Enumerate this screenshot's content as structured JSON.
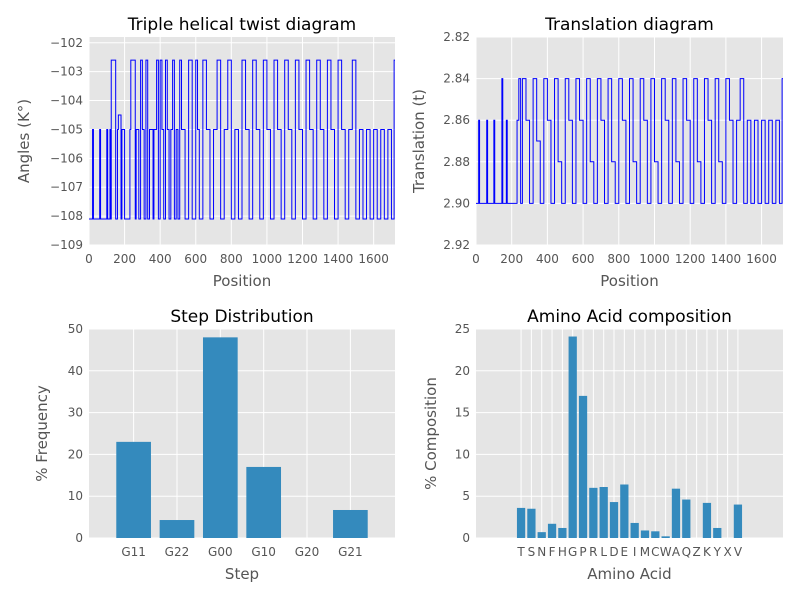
{
  "chart_data": [
    {
      "type": "line",
      "title": "Triple helical twist diagram",
      "xlabel": "Position",
      "ylabel": "Angles (K°)",
      "xlim": [
        0,
        1720
      ],
      "ylim": [
        -109,
        -101.8
      ],
      "xticks": [
        "0",
        "200",
        "400",
        "600",
        "800",
        "1000",
        "1200",
        "1400",
        "1600"
      ],
      "yticks": [
        "−102",
        "−103",
        "−104",
        "−105",
        "−106",
        "−107",
        "−108",
        "−109"
      ],
      "grid": true,
      "color": "#0000ff",
      "note_levels": [
        -102.6,
        -104.5,
        -105.0,
        -106.2,
        -107.3,
        -108.1
      ],
      "series": [
        {
          "x": [
            0,
            20,
            25,
            60,
            65,
            100,
            105,
            118,
            120,
            125,
            150,
            160,
            165,
            180,
            185,
            200,
            230,
            235,
            260,
            265,
            280,
            290,
            300,
            310,
            320,
            330,
            340,
            360,
            365,
            380,
            390,
            400,
            410,
            420,
            430,
            440,
            450,
            460,
            470,
            480,
            490,
            500,
            510,
            520,
            540,
            560,
            580,
            600,
            610,
            620,
            640,
            660,
            680,
            700,
            720,
            740,
            760,
            780,
            800,
            820,
            840,
            860,
            880,
            900,
            920,
            940,
            960,
            980,
            1000,
            1020,
            1040,
            1060,
            1080,
            1100,
            1120,
            1140,
            1160,
            1180,
            1200,
            1220,
            1240,
            1260,
            1280,
            1300,
            1320,
            1340,
            1360,
            1380,
            1400,
            1420,
            1440,
            1460,
            1480,
            1500,
            1520,
            1540,
            1560,
            1580,
            1600,
            1620,
            1640,
            1660,
            1680,
            1700,
            1715
          ],
          "y": [
            -108.1,
            -105.0,
            -108.1,
            -105.0,
            -108.1,
            -105.0,
            -108.1,
            -105.0,
            -108.1,
            -102.6,
            -108.1,
            -105.0,
            -104.5,
            -108.1,
            -105.0,
            -108.1,
            -105.0,
            -102.6,
            -108.1,
            -105.0,
            -108.1,
            -102.6,
            -105.0,
            -108.1,
            -102.6,
            -108.1,
            -105.0,
            -108.1,
            -105.0,
            -102.6,
            -108.1,
            -102.6,
            -105.0,
            -108.1,
            -102.6,
            -105.0,
            -108.1,
            -105.0,
            -102.6,
            -108.1,
            -105.0,
            -108.1,
            -102.6,
            -105.0,
            -108.1,
            -102.6,
            -108.1,
            -102.6,
            -105.0,
            -108.1,
            -102.6,
            -105.0,
            -108.1,
            -105.0,
            -102.6,
            -108.1,
            -105.0,
            -102.6,
            -108.1,
            -105.0,
            -108.1,
            -102.6,
            -105.0,
            -108.1,
            -102.6,
            -105.0,
            -108.1,
            -102.6,
            -105.0,
            -108.1,
            -102.6,
            -105.0,
            -108.1,
            -102.6,
            -105.0,
            -108.1,
            -102.6,
            -105.0,
            -108.1,
            -102.6,
            -105.0,
            -108.1,
            -102.6,
            -105.0,
            -108.1,
            -102.6,
            -105.0,
            -108.1,
            -102.6,
            -105.0,
            -108.1,
            -105.0,
            -102.6,
            -108.1,
            -105.0,
            -108.1,
            -105.0,
            -108.1,
            -105.0,
            -108.1,
            -105.0,
            -108.1,
            -105.0,
            -108.1,
            -102.6
          ]
        }
      ]
    },
    {
      "type": "line",
      "title": "Translation diagram",
      "xlabel": "Position",
      "ylabel": "Translation (t)",
      "xlim": [
        0,
        1720
      ],
      "ylim": [
        2.92,
        2.82
      ],
      "inverted_y": true,
      "xticks": [
        "0",
        "200",
        "400",
        "600",
        "800",
        "1000",
        "1200",
        "1400",
        "1600"
      ],
      "yticks": [
        "2.82",
        "2.84",
        "2.86",
        "2.88",
        "2.90",
        "2.92"
      ],
      "grid": true,
      "color": "#0000ff",
      "series": [
        {
          "x": [
            0,
            15,
            20,
            60,
            65,
            100,
            105,
            140,
            145,
            150,
            170,
            175,
            200,
            230,
            240,
            250,
            260,
            280,
            300,
            320,
            340,
            360,
            380,
            400,
            420,
            440,
            460,
            480,
            500,
            520,
            540,
            560,
            580,
            600,
            620,
            640,
            660,
            680,
            700,
            720,
            740,
            760,
            780,
            800,
            820,
            840,
            860,
            880,
            900,
            920,
            940,
            960,
            980,
            1000,
            1020,
            1040,
            1060,
            1080,
            1100,
            1120,
            1140,
            1160,
            1180,
            1200,
            1220,
            1240,
            1260,
            1280,
            1300,
            1320,
            1340,
            1360,
            1380,
            1400,
            1420,
            1440,
            1460,
            1480,
            1500,
            1520,
            1540,
            1560,
            1580,
            1600,
            1620,
            1640,
            1660,
            1680,
            1700,
            1715
          ],
          "y": [
            2.9,
            2.86,
            2.9,
            2.86,
            2.9,
            2.86,
            2.9,
            2.9,
            2.84,
            2.9,
            2.86,
            2.9,
            2.9,
            2.86,
            2.84,
            2.9,
            2.84,
            2.86,
            2.9,
            2.84,
            2.87,
            2.9,
            2.84,
            2.86,
            2.9,
            2.84,
            2.88,
            2.9,
            2.84,
            2.86,
            2.9,
            2.84,
            2.86,
            2.9,
            2.84,
            2.88,
            2.9,
            2.84,
            2.86,
            2.9,
            2.84,
            2.88,
            2.9,
            2.84,
            2.86,
            2.9,
            2.84,
            2.88,
            2.9,
            2.84,
            2.86,
            2.9,
            2.84,
            2.88,
            2.9,
            2.84,
            2.86,
            2.9,
            2.84,
            2.88,
            2.9,
            2.84,
            2.86,
            2.9,
            2.84,
            2.88,
            2.9,
            2.84,
            2.86,
            2.9,
            2.84,
            2.88,
            2.9,
            2.84,
            2.86,
            2.9,
            2.86,
            2.84,
            2.9,
            2.86,
            2.9,
            2.86,
            2.9,
            2.86,
            2.9,
            2.86,
            2.9,
            2.86,
            2.9,
            2.84
          ]
        }
      ]
    },
    {
      "type": "bar",
      "title": "Step Distribution",
      "xlabel": "Step",
      "ylabel": "% Frequency",
      "ylim": [
        0,
        50
      ],
      "yticks": [
        "0",
        "10",
        "20",
        "30",
        "40",
        "50"
      ],
      "categories": [
        "G11",
        "G22",
        "G00",
        "G10",
        "G20",
        "G21"
      ],
      "values": [
        23.0,
        4.3,
        48.0,
        17.0,
        0,
        6.7
      ],
      "grid": true,
      "color": "#348abd"
    },
    {
      "type": "bar",
      "title": "Amino Acid composition",
      "xlabel": "Amino Acid",
      "ylabel": "% Composition",
      "ylim": [
        0,
        25
      ],
      "yticks": [
        "0",
        "5",
        "10",
        "15",
        "20",
        "25"
      ],
      "categories": [
        "T",
        "S",
        "N",
        "F",
        "H",
        "G",
        "P",
        "R",
        "L",
        "D",
        "E",
        "I",
        "M",
        "C",
        "W",
        "A",
        "Q",
        "Z",
        "K",
        "Y",
        "X",
        "V"
      ],
      "values": [
        3.6,
        3.5,
        0.7,
        1.7,
        1.2,
        24.1,
        17.0,
        6.0,
        6.1,
        4.3,
        6.4,
        1.8,
        0.9,
        0.8,
        0.2,
        5.9,
        4.6,
        0,
        4.2,
        1.2,
        0,
        4.0
      ],
      "grid": true,
      "color": "#348abd"
    }
  ]
}
